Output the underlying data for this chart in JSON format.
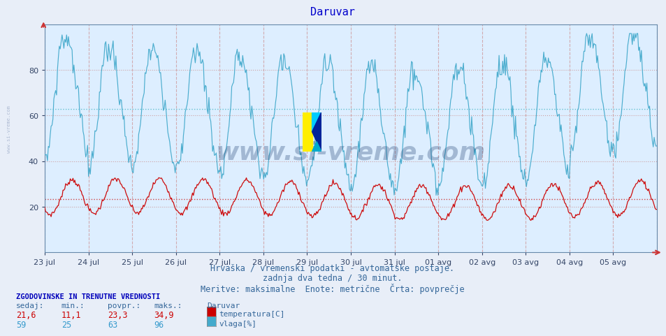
{
  "title": "Daruvar",
  "title_color": "#0000cc",
  "bg_color": "#e8eef8",
  "plot_bg_color": "#ddeeff",
  "xlabel_line1": "Hrvaška / vremenski podatki - avtomatske postaje.",
  "xlabel_line2": "zadnja dva tedna / 30 minut.",
  "xlabel_line3": "Meritve: maksimalne  Enote: metrične  Črta: povprečje",
  "xlabel_color": "#336699",
  "ylim": [
    0,
    100
  ],
  "yticks": [
    20,
    40,
    60,
    80
  ],
  "grid_dotted_color": "#cc9999",
  "grid_blue_color": "#88bbdd",
  "temp_color": "#cc0000",
  "vlaga_color": "#44aacc",
  "avg_temp_color": "#cc3333",
  "avg_vlaga_color": "#55bbcc",
  "vline_color": "#cc8888",
  "hline_temp_avg": 23.3,
  "hline_vlaga_avg": 63,
  "x_labels": [
    "23 jul",
    "24 jul",
    "25 jul",
    "26 jul",
    "27 jul",
    "28 jul",
    "29 jul",
    "30 jul",
    "31 jul",
    "01 avg",
    "02 avg",
    "03 avg",
    "04 avg",
    "05 avg"
  ],
  "legend_title": "Daruvar",
  "legend_items": [
    {
      "label": "temperatura[C]",
      "color": "#cc0000"
    },
    {
      "label": "vlaga[%]",
      "color": "#44aacc"
    }
  ],
  "stats_header": "ZGODOVINSKE IN TRENUTNE VREDNOSTI",
  "stats_cols": [
    "sedaj:",
    "min.:",
    "povpr.:",
    "maks.:"
  ],
  "stats_temp": [
    "21,6",
    "11,1",
    "23,3",
    "34,9"
  ],
  "stats_vlaga": [
    "59",
    "25",
    "63",
    "96"
  ],
  "n_points": 672,
  "temp_min": 11.1,
  "temp_max": 34.9,
  "temp_avg": 23.3,
  "vlaga_min": 25,
  "vlaga_max": 96,
  "vlaga_avg": 63,
  "watermark": "www.si-vreme.com"
}
